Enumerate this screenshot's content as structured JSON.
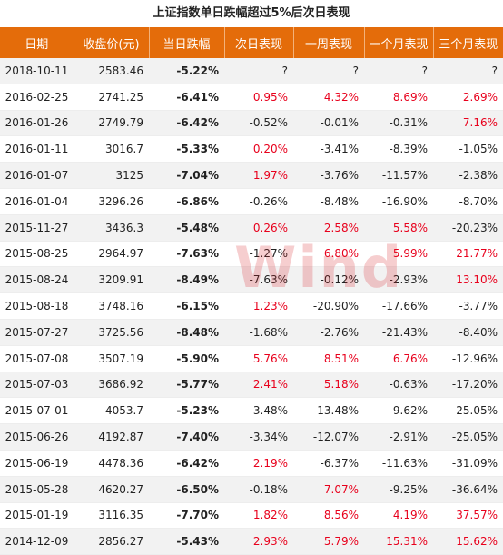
{
  "title": "上证指数单日跌幅超过5%后次日表现",
  "watermark": "Wind",
  "headers": [
    "日期",
    "收盘价(元)",
    "当日跌幅",
    "次日表现",
    "一周表现",
    "一个月表现",
    "三个月表现"
  ],
  "rows": [
    [
      "2018-10-11",
      "2583.46",
      "-5.22%",
      "?",
      "?",
      "?",
      "?"
    ],
    [
      "2016-02-25",
      "2741.25",
      "-6.41%",
      "0.95%",
      "4.32%",
      "8.69%",
      "2.69%"
    ],
    [
      "2016-01-26",
      "2749.79",
      "-6.42%",
      "-0.52%",
      "-0.01%",
      "-0.31%",
      "7.16%"
    ],
    [
      "2016-01-11",
      "3016.7",
      "-5.33%",
      "0.20%",
      "-3.41%",
      "-8.39%",
      "-1.05%"
    ],
    [
      "2016-01-07",
      "3125",
      "-7.04%",
      "1.97%",
      "-3.76%",
      "-11.57%",
      "-2.38%"
    ],
    [
      "2016-01-04",
      "3296.26",
      "-6.86%",
      "-0.26%",
      "-8.48%",
      "-16.90%",
      "-8.70%"
    ],
    [
      "2015-11-27",
      "3436.3",
      "-5.48%",
      "0.26%",
      "2.58%",
      "5.58%",
      "-20.23%"
    ],
    [
      "2015-08-25",
      "2964.97",
      "-7.63%",
      "-1.27%",
      "6.80%",
      "5.99%",
      "21.77%"
    ],
    [
      "2015-08-24",
      "3209.91",
      "-8.49%",
      "-7.63%",
      "-0.12%",
      "-2.93%",
      "13.10%"
    ],
    [
      "2015-08-18",
      "3748.16",
      "-6.15%",
      "1.23%",
      "-20.90%",
      "-17.66%",
      "-3.77%"
    ],
    [
      "2015-07-27",
      "3725.56",
      "-8.48%",
      "-1.68%",
      "-2.76%",
      "-21.43%",
      "-8.40%"
    ],
    [
      "2015-07-08",
      "3507.19",
      "-5.90%",
      "5.76%",
      "8.51%",
      "6.76%",
      "-12.96%"
    ],
    [
      "2015-07-03",
      "3686.92",
      "-5.77%",
      "2.41%",
      "5.18%",
      "-0.63%",
      "-17.20%"
    ],
    [
      "2015-07-01",
      "4053.7",
      "-5.23%",
      "-3.48%",
      "-13.48%",
      "-9.62%",
      "-25.05%"
    ],
    [
      "2015-06-26",
      "4192.87",
      "-7.40%",
      "-3.34%",
      "-12.07%",
      "-2.91%",
      "-25.05%"
    ],
    [
      "2015-06-19",
      "4478.36",
      "-6.42%",
      "2.19%",
      "-6.37%",
      "-11.63%",
      "-31.09%"
    ],
    [
      "2015-05-28",
      "4620.27",
      "-6.50%",
      "-0.18%",
      "7.07%",
      "-9.25%",
      "-36.64%"
    ],
    [
      "2015-01-19",
      "3116.35",
      "-7.70%",
      "1.82%",
      "8.56%",
      "4.19%",
      "37.57%"
    ],
    [
      "2014-12-09",
      "2856.27",
      "-5.43%",
      "2.93%",
      "5.79%",
      "15.31%",
      "15.62%"
    ]
  ]
}
